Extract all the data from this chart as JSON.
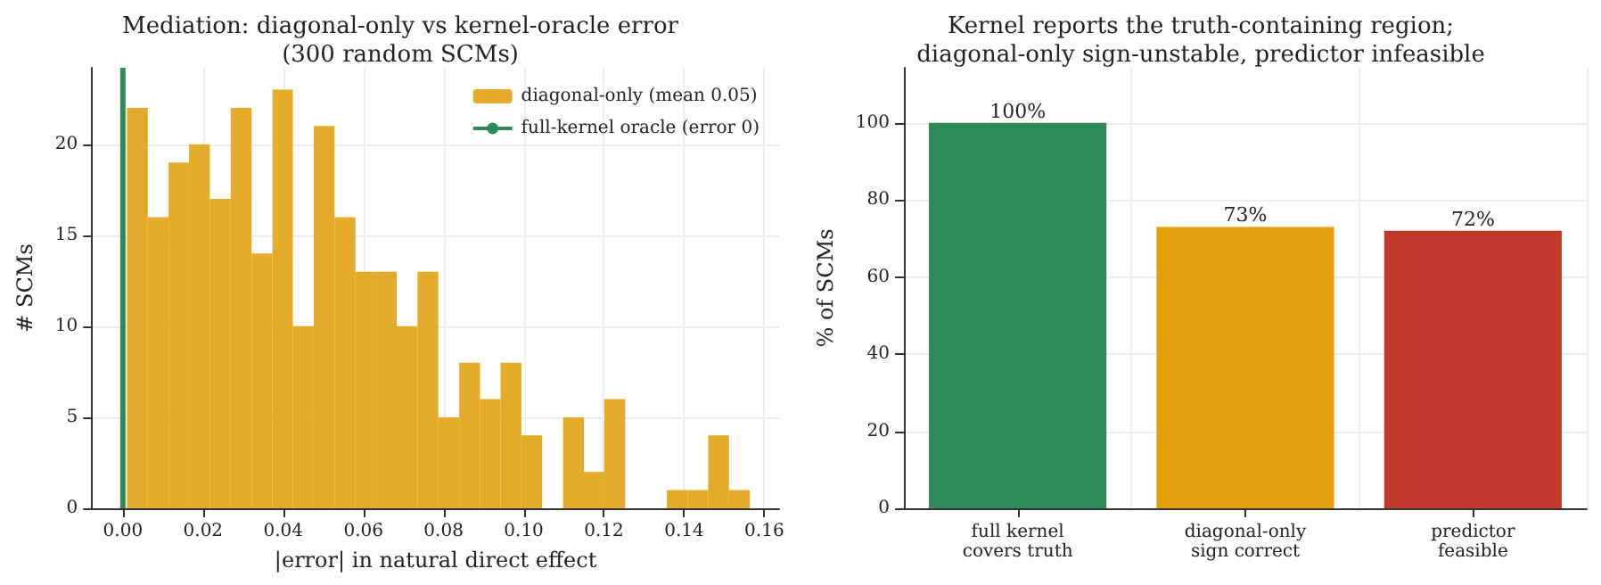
{
  "chart_data": [
    {
      "type": "histogram",
      "title": "Mediation: diagonal-only vs kernel-oracle error\n(300 random SCMs)",
      "xlabel": "|error| in natural direct effect",
      "ylabel": "# SCMs",
      "bins": [
        0.001,
        0.0062,
        0.0114,
        0.0165,
        0.0217,
        0.0269,
        0.0321,
        0.0373,
        0.0424,
        0.0476,
        0.0528,
        0.058,
        0.0632,
        0.0683,
        0.0735,
        0.0787,
        0.0839,
        0.0891,
        0.0942,
        0.0994,
        0.1046,
        0.1098,
        0.115,
        0.1201,
        0.1253,
        0.1305,
        0.1357,
        0.1409,
        0.146,
        0.1512,
        0.1564
      ],
      "series": [
        {
          "name": "diagonal-only (mean 0.05)",
          "color": "#e5ab2a",
          "values": [
            22,
            16,
            19,
            20,
            17,
            22,
            14,
            23,
            10,
            21,
            16,
            13,
            13,
            10,
            13,
            5,
            8,
            6,
            8,
            4,
            0,
            5,
            2,
            6,
            0,
            0,
            1,
            1,
            4,
            1
          ]
        },
        {
          "type": "line",
          "name": "full-kernel oracle (error 0)",
          "color": "#2e8b57",
          "x": [
            0,
            0
          ],
          "values": [
            0,
            24.2
          ]
        }
      ],
      "xlim": [
        -0.0077,
        0.1637
      ],
      "xticks": [
        {
          "value": 0,
          "label": "0.00"
        },
        {
          "value": 0.02,
          "label": "0.02"
        },
        {
          "value": 0.04,
          "label": "0.04"
        },
        {
          "value": 0.06,
          "label": "0.06"
        },
        {
          "value": 0.08,
          "label": "0.08"
        },
        {
          "value": 0.1,
          "label": "0.10"
        },
        {
          "value": 0.12,
          "label": "0.12"
        },
        {
          "value": 0.14,
          "label": "0.14"
        },
        {
          "value": 0.16,
          "label": "0.16"
        }
      ],
      "ylim": [
        0,
        24.2
      ],
      "yticks": [
        0,
        5,
        10,
        15,
        20
      ],
      "grid": true,
      "legend": "top right"
    },
    {
      "type": "bar",
      "title": "Kernel reports the truth-containing region;\ndiagonal-only sign-unstable, predictor infeasible",
      "ylabel": "% of SCMs",
      "categories": [
        "full kernel\ncovers truth",
        "diagonal-only\nsign correct",
        "predictor\nfeasible"
      ],
      "values": [
        100,
        73,
        72
      ],
      "colors": [
        "#2e8b57",
        "#e1a00c",
        "#c0392b"
      ],
      "value_labels": [
        "100%",
        "73%",
        "72%"
      ],
      "ylim": [
        0,
        114.3
      ],
      "yticks": [
        0,
        20,
        40,
        60,
        80,
        100
      ],
      "grid": true
    }
  ]
}
